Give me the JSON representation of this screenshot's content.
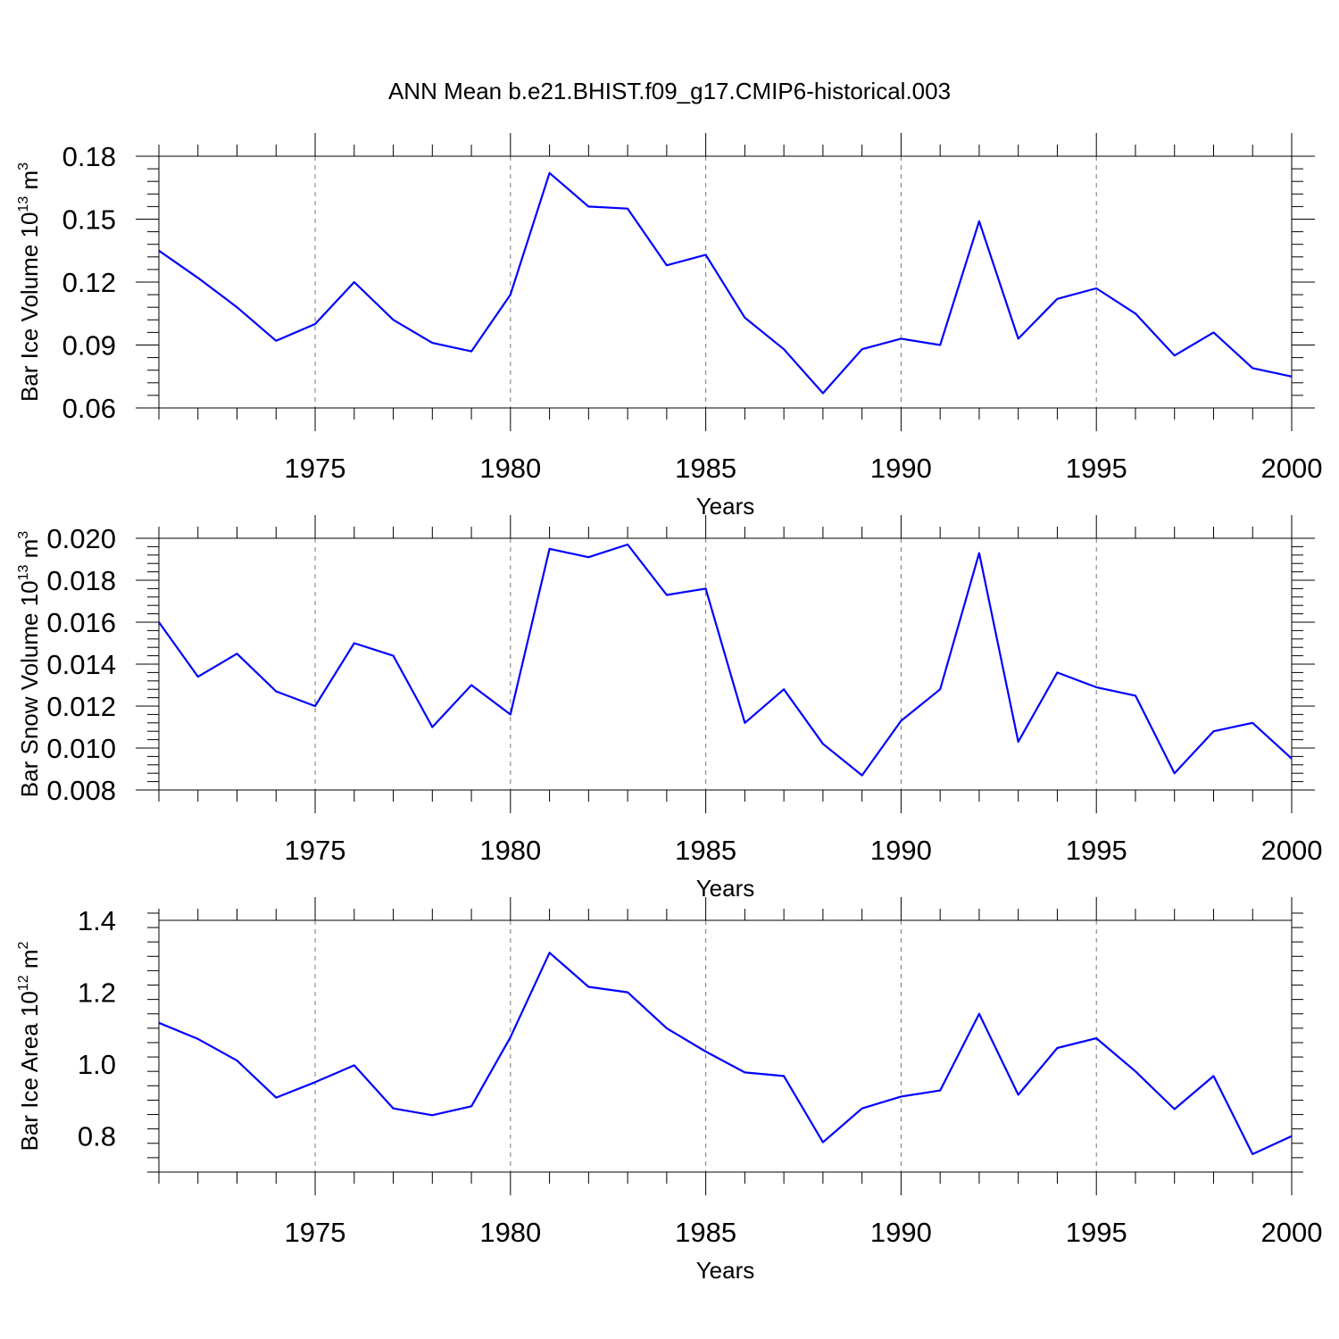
{
  "title": "ANN Mean b.e21.BHIST.f09_g17.CMIP6-historical.003",
  "colors": {
    "series": "#0000ff",
    "axis": "#000000",
    "grid": "#777777"
  },
  "chart_data": [
    {
      "type": "line",
      "ylabel": "Bar Ice Volume 10",
      "ylabel_exp": "13",
      "ylabel_unit": " m",
      "ylabel_unit_exp": "3",
      "xlabel": "Years",
      "xlim": [
        1971,
        2000
      ],
      "ylim": [
        0.06,
        0.18
      ],
      "yticks": [
        0.06,
        0.09,
        0.12,
        0.15,
        0.18
      ],
      "ytick_labels": [
        "0.06",
        "0.09",
        "0.12",
        "0.15",
        "0.18"
      ],
      "xticks": [
        1975,
        1980,
        1985,
        1990,
        1995,
        2000
      ],
      "xtick_labels": [
        "1975",
        "1980",
        "1985",
        "1990",
        "1995",
        "2000"
      ],
      "x": [
        1971,
        1972,
        1973,
        1974,
        1975,
        1976,
        1977,
        1978,
        1979,
        1980,
        1981,
        1982,
        1983,
        1984,
        1985,
        1986,
        1987,
        1988,
        1989,
        1990,
        1991,
        1992,
        1993,
        1994,
        1995,
        1996,
        1997,
        1998,
        1999,
        2000
      ],
      "series": [
        {
          "name": "Bar Ice Volume",
          "values": [
            0.135,
            0.122,
            0.108,
            0.092,
            0.1,
            0.12,
            0.102,
            0.091,
            0.087,
            0.114,
            0.172,
            0.156,
            0.155,
            0.128,
            0.133,
            0.103,
            0.088,
            0.067,
            0.088,
            0.093,
            0.09,
            0.149,
            0.093,
            0.112,
            0.117,
            0.105,
            0.085,
            0.096,
            0.079,
            0.075
          ]
        }
      ]
    },
    {
      "type": "line",
      "ylabel": "Bar Snow Volume 10",
      "ylabel_exp": "13",
      "ylabel_unit": " m",
      "ylabel_unit_exp": "3",
      "xlabel": "Years",
      "xlim": [
        1971,
        2000
      ],
      "ylim": [
        0.008,
        0.02
      ],
      "yticks": [
        0.008,
        0.01,
        0.012,
        0.014,
        0.016,
        0.018,
        0.02
      ],
      "ytick_labels": [
        "0.008",
        "0.010",
        "0.012",
        "0.014",
        "0.016",
        "0.018",
        "0.020"
      ],
      "xticks": [
        1975,
        1980,
        1985,
        1990,
        1995,
        2000
      ],
      "xtick_labels": [
        "1975",
        "1980",
        "1985",
        "1990",
        "1995",
        "2000"
      ],
      "x": [
        1971,
        1972,
        1973,
        1974,
        1975,
        1976,
        1977,
        1978,
        1979,
        1980,
        1981,
        1982,
        1983,
        1984,
        1985,
        1986,
        1987,
        1988,
        1989,
        1990,
        1991,
        1992,
        1993,
        1994,
        1995,
        1996,
        1997,
        1998,
        1999,
        2000
      ],
      "series": [
        {
          "name": "Bar Snow Volume",
          "values": [
            0.016,
            0.0134,
            0.0145,
            0.0127,
            0.012,
            0.015,
            0.0144,
            0.011,
            0.013,
            0.0116,
            0.0195,
            0.0191,
            0.0197,
            0.0173,
            0.0176,
            0.0112,
            0.0128,
            0.0102,
            0.0087,
            0.0113,
            0.0128,
            0.0193,
            0.0103,
            0.0136,
            0.0129,
            0.0125,
            0.0088,
            0.0108,
            0.0112,
            0.0095
          ]
        }
      ]
    },
    {
      "type": "line",
      "ylabel": "Bar Ice Area 10",
      "ylabel_exp": "12",
      "ylabel_unit": " m",
      "ylabel_unit_exp": "2",
      "xlabel": "Years",
      "xlim": [
        1971,
        2000
      ],
      "ylim": [
        0.7,
        1.4
      ],
      "yticks": [
        0.8,
        1.0,
        1.2,
        1.4
      ],
      "ytick_labels": [
        "0.8",
        "1.0",
        "1.2",
        "1.4"
      ],
      "xticks": [
        1975,
        1980,
        1985,
        1990,
        1995,
        2000
      ],
      "xtick_labels": [
        "1975",
        "1980",
        "1985",
        "1990",
        "1995",
        "2000"
      ],
      "x": [
        1971,
        1972,
        1973,
        1974,
        1975,
        1976,
        1977,
        1978,
        1979,
        1980,
        1981,
        1982,
        1983,
        1984,
        1985,
        1986,
        1987,
        1988,
        1989,
        1990,
        1991,
        1992,
        1993,
        1994,
        1995,
        1996,
        1997,
        1998,
        1999,
        2000
      ],
      "series": [
        {
          "name": "Bar Ice Area",
          "values": [
            1.115,
            1.07,
            1.01,
            0.907,
            0.95,
            0.997,
            0.877,
            0.858,
            0.883,
            1.075,
            1.31,
            1.215,
            1.2,
            1.1,
            1.035,
            0.977,
            0.967,
            0.783,
            0.877,
            0.91,
            0.927,
            1.14,
            0.915,
            1.045,
            1.072,
            0.98,
            0.875,
            0.967,
            0.75,
            0.8
          ]
        }
      ]
    }
  ]
}
